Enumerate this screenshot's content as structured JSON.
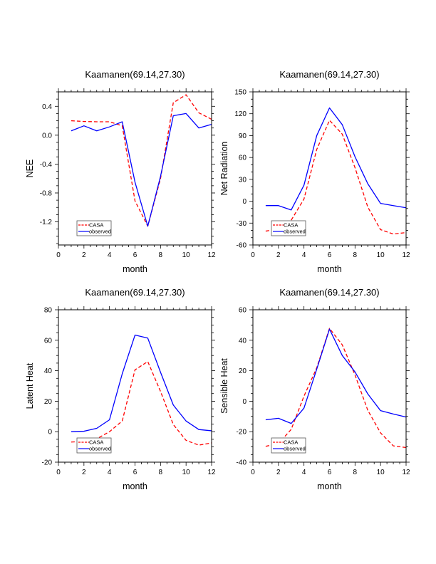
{
  "figure": {
    "background": "#ffffff"
  },
  "chart_data": [
    {
      "id": "nee",
      "type": "line",
      "title": "Kaamanen(69.14,27.30)",
      "xlabel": "month",
      "ylabel": "NEE",
      "xlim": [
        0,
        12
      ],
      "ylim": [
        -1.52,
        0.6
      ],
      "xticks": [
        0,
        2,
        4,
        6,
        8,
        10,
        12
      ],
      "xtick_labels": [
        "0",
        "2",
        "4",
        "6",
        "8",
        "10",
        "12"
      ],
      "xminor_step": 0.5,
      "yticks": [
        0.4,
        0.0,
        -0.4,
        -0.8,
        -1.2
      ],
      "ytick_labels": [
        "0.4",
        "0.0",
        "-0.4",
        "-0.8",
        "-1.2"
      ],
      "yminor_step": 0.1,
      "grid": false,
      "legend_position": "bottom-left",
      "x": [
        1,
        2,
        3,
        4,
        5,
        6,
        7,
        8,
        9,
        10,
        11,
        12
      ],
      "series": [
        {
          "name": "CASA",
          "color": "#ff0000",
          "style": "dashed",
          "values": [
            0.2,
            0.19,
            0.186,
            0.186,
            0.13,
            -0.91,
            -1.26,
            -0.6,
            0.45,
            0.56,
            0.31,
            0.22
          ]
        },
        {
          "name": "observed",
          "color": "#0000ff",
          "style": "solid",
          "values": [
            0.06,
            0.13,
            0.06,
            0.115,
            0.186,
            -0.65,
            -1.26,
            -0.57,
            0.27,
            0.3,
            0.1,
            0.15
          ]
        }
      ]
    },
    {
      "id": "net-radiation",
      "type": "line",
      "title": "Kaamanen(69.14,27.30)",
      "xlabel": "month",
      "ylabel": "Net Radiation",
      "xlim": [
        0,
        12
      ],
      "ylim": [
        -60,
        150
      ],
      "xticks": [
        0,
        2,
        4,
        6,
        8,
        10,
        12
      ],
      "xtick_labels": [
        "0",
        "2",
        "4",
        "6",
        "8",
        "10",
        "12"
      ],
      "xminor_step": 0.5,
      "yticks": [
        150,
        120,
        90,
        60,
        30,
        0,
        -30,
        -60
      ],
      "ytick_labels": [
        "150",
        "120",
        "90",
        "60",
        "30",
        "0",
        "-30",
        "-60"
      ],
      "yminor_step": 10,
      "grid": false,
      "legend_position": "bottom-left",
      "x": [
        1,
        2,
        3,
        4,
        5,
        6,
        7,
        8,
        9,
        10,
        11,
        12
      ],
      "series": [
        {
          "name": "CASA",
          "color": "#ff0000",
          "style": "dashed",
          "values": [
            -41,
            -38,
            -26,
            3,
            71,
            111,
            92,
            46,
            -8,
            -39,
            -45,
            -43
          ]
        },
        {
          "name": "observed",
          "color": "#0000ff",
          "style": "solid",
          "values": [
            -6,
            -6,
            -12,
            22,
            90,
            128,
            105,
            61,
            24,
            -3,
            -6,
            -9
          ]
        }
      ]
    },
    {
      "id": "latent-heat",
      "type": "line",
      "title": "Kaamanen(69.14,27.30)",
      "xlabel": "month",
      "ylabel": "Latent Heat",
      "xlim": [
        0,
        12
      ],
      "ylim": [
        -20,
        80
      ],
      "xticks": [
        0,
        2,
        4,
        6,
        8,
        10,
        12
      ],
      "xtick_labels": [
        "0",
        "2",
        "4",
        "6",
        "8",
        "10",
        "12"
      ],
      "xminor_step": 0.5,
      "yticks": [
        80,
        60,
        40,
        20,
        0,
        -20
      ],
      "ytick_labels": [
        "80",
        "60",
        "40",
        "20",
        "0",
        "-20"
      ],
      "yminor_step": 5,
      "grid": false,
      "legend_position": "bottom-left",
      "x": [
        1,
        2,
        3,
        4,
        5,
        6,
        7,
        8,
        9,
        10,
        11,
        12
      ],
      "series": [
        {
          "name": "CASA",
          "color": "#ff0000",
          "style": "dashed",
          "values": [
            -6.8,
            -6.4,
            -4.7,
            0,
            7,
            40.6,
            46,
            26.4,
            4.7,
            -5.7,
            -8.8,
            -7.4
          ]
        },
        {
          "name": "observed",
          "color": "#0000ff",
          "style": "solid",
          "values": [
            0,
            0.3,
            2.2,
            7.8,
            38,
            63.4,
            61.4,
            39,
            17.5,
            7,
            1.4,
            0.6
          ]
        }
      ]
    },
    {
      "id": "sensible-heat",
      "type": "line",
      "title": "Kaamanen(69.14,27.30)",
      "xlabel": "month",
      "ylabel": "Sensible Heat",
      "xlim": [
        0,
        12
      ],
      "ylim": [
        -40,
        60
      ],
      "xticks": [
        0,
        2,
        4,
        6,
        8,
        10,
        12
      ],
      "xtick_labels": [
        "0",
        "2",
        "4",
        "6",
        "8",
        "10",
        "12"
      ],
      "xminor_step": 0.5,
      "yticks": [
        60,
        40,
        20,
        0,
        -20,
        -40
      ],
      "ytick_labels": [
        "60",
        "40",
        "20",
        "0",
        "-20",
        "-40"
      ],
      "yminor_step": 5,
      "grid": false,
      "legend_position": "bottom-left",
      "x": [
        1,
        2,
        3,
        4,
        5,
        6,
        7,
        8,
        9,
        10,
        11,
        12
      ],
      "series": [
        {
          "name": "CASA",
          "color": "#ff0000",
          "style": "dashed",
          "values": [
            -29.6,
            -27.8,
            -18.5,
            3.3,
            21.9,
            47.8,
            37,
            17.2,
            -6,
            -20.8,
            -29.3,
            -30.4
          ]
        },
        {
          "name": "observed",
          "color": "#0000ff",
          "style": "solid",
          "values": [
            -12.2,
            -11.2,
            -14.6,
            -4.5,
            21,
            47.3,
            30,
            19.2,
            4.8,
            -6.2,
            -8.4,
            -10.4
          ]
        }
      ]
    }
  ]
}
